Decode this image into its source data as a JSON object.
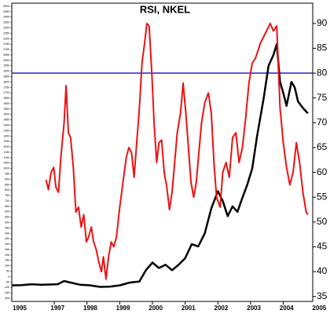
{
  "chart_data": {
    "type": "line",
    "title": "RSI, NKEL",
    "xlim": [
      1995.7,
      2004.9
    ],
    "xticks": [
      1995,
      1997,
      1998,
      1999,
      2000,
      2001,
      2002,
      2003,
      2004,
      2005
    ],
    "ylim": [
      -229,
      2529
    ],
    "yticks": [
      -200,
      -150,
      -100,
      -50,
      0,
      50,
      100,
      150,
      200,
      250,
      300,
      350,
      400,
      450,
      500,
      550,
      600,
      650,
      700,
      750,
      800,
      850,
      900,
      950,
      1000,
      1050,
      1100,
      1150,
      1200,
      1250,
      1300,
      1350,
      1400,
      1450,
      1500,
      1550,
      1600,
      1650,
      1700,
      1750,
      1800,
      1850,
      1900,
      1950,
      2000,
      2050,
      2100,
      2150,
      2200,
      2250,
      2300,
      2350,
      2400,
      2450,
      2500
    ],
    "y2lim": [
      34,
      94.1
    ],
    "y2ticks": [
      35,
      40,
      45,
      50,
      55,
      60,
      65,
      70,
      75,
      80,
      85,
      90
    ],
    "hline": {
      "value": 80,
      "axis": "y2",
      "color": "#2323c8"
    },
    "series": [
      {
        "color": "#000000",
        "axis": "y",
        "x": [
          1995.7,
          1996.0,
          1996.3,
          1996.6,
          1996.9,
          1997.1,
          1997.3,
          1997.5,
          1997.8,
          1998.1,
          1998.4,
          1998.7,
          1999.0,
          1999.3,
          1999.6,
          1999.8,
          2000.0,
          2000.2,
          2000.4,
          2000.6,
          2000.8,
          2001.0,
          2001.2,
          2001.4,
          2001.6,
          2001.8,
          2002.0,
          2002.15,
          2002.3,
          2002.45,
          2002.6,
          2002.75,
          2002.9,
          2003.05,
          2003.2,
          2003.4,
          2003.55,
          2003.7,
          2003.8,
          2003.9,
          2004.0,
          2004.1,
          2004.25,
          2004.35,
          2004.45,
          2004.6,
          2004.75
        ],
        "values": [
          -80,
          -78,
          -70,
          -75,
          -72,
          -70,
          -40,
          -55,
          -75,
          -80,
          -95,
          -92,
          -80,
          -55,
          -45,
          60,
          130,
          80,
          110,
          60,
          110,
          170,
          300,
          280,
          400,
          630,
          790,
          700,
          560,
          650,
          600,
          730,
          850,
          1000,
          1300,
          1650,
          1950,
          2050,
          2150,
          1800,
          1700,
          1580,
          1800,
          1750,
          1620,
          1560,
          1510
        ]
      },
      {
        "color": "#ee1111",
        "axis": "y2",
        "x": [
          1996.75,
          1996.82,
          1996.9,
          1996.98,
          1997.05,
          1997.13,
          1997.2,
          1997.3,
          1997.36,
          1997.43,
          1997.5,
          1997.58,
          1997.66,
          1997.74,
          1997.82,
          1997.9,
          1997.98,
          1998.05,
          1998.13,
          1998.2,
          1998.28,
          1998.36,
          1998.44,
          1998.5,
          1998.58,
          1998.66,
          1998.74,
          1998.82,
          1998.9,
          1999.0,
          1999.1,
          1999.2,
          1999.28,
          1999.36,
          1999.44,
          1999.52,
          1999.6,
          1999.68,
          1999.76,
          1999.83,
          1999.9,
          1999.98,
          2000.05,
          2000.13,
          2000.2,
          2000.28,
          2000.36,
          2000.44,
          2000.52,
          2000.6,
          2000.68,
          2000.76,
          2000.86,
          2000.94,
          2001.02,
          2001.1,
          2001.18,
          2001.26,
          2001.34,
          2001.42,
          2001.5,
          2001.6,
          2001.71,
          2001.8,
          2001.88,
          2001.96,
          2002.07,
          2002.15,
          2002.25,
          2002.35,
          2002.45,
          2002.55,
          2002.65,
          2002.75,
          2002.85,
          2002.95,
          2003.05,
          2003.15,
          2003.3,
          2003.45,
          2003.6,
          2003.7,
          2003.8,
          2003.9,
          2004.0,
          2004.1,
          2004.2,
          2004.3,
          2004.4,
          2004.5,
          2004.6,
          2004.7,
          2004.75
        ],
        "values": [
          58.5,
          56.5,
          60,
          61,
          57,
          56,
          63,
          70,
          77.5,
          68,
          67,
          61,
          52,
          53,
          49,
          51.5,
          46,
          47,
          49,
          46,
          44.5,
          42,
          40,
          43,
          38.5,
          43,
          46,
          45,
          47,
          53,
          58,
          63,
          65,
          64,
          59,
          66,
          73,
          82,
          86,
          90,
          89.5,
          80,
          70,
          62,
          66,
          66.5,
          60,
          57,
          52.5,
          56,
          62,
          68,
          72,
          78,
          72,
          65,
          58,
          55,
          58,
          64,
          70,
          74,
          76,
          72,
          62,
          55,
          53,
          60,
          62,
          59,
          67,
          68,
          62,
          65,
          71,
          78,
          82,
          83,
          86,
          88,
          90,
          88.5,
          89.5,
          73,
          66,
          61,
          57.5,
          60,
          66,
          62,
          56,
          52,
          51.5
        ]
      }
    ]
  }
}
